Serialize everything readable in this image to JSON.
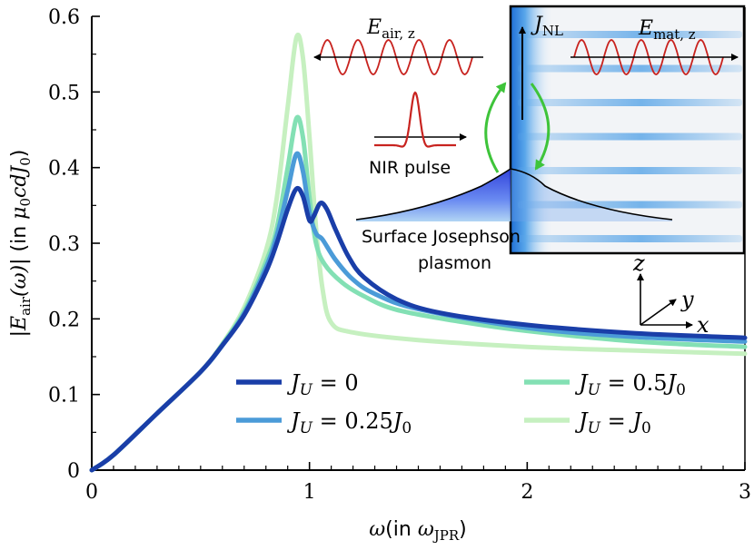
{
  "chart_data": {
    "type": "line",
    "title": "",
    "xlabel": {
      "symbol": "ω",
      "prefix": "(in ",
      "unit_main": "ω",
      "unit_sub": "JPR",
      "suffix": ")"
    },
    "ylabel": {
      "pre": "|",
      "main": "E",
      "sub": "air",
      "arg": "(ω)",
      "post": "|",
      "paren_open": " (in ",
      "unit": "μ",
      "unit_sub": "0",
      "unit_rest": "cdJ",
      "unit_sub2": "0",
      "paren_close": ")"
    },
    "xlim": [
      0,
      3
    ],
    "ylim": [
      0,
      0.6
    ],
    "x_ticks": [
      0,
      1,
      2,
      3
    ],
    "x_tick_labels": [
      "0",
      "1",
      "2",
      "3"
    ],
    "y_ticks": [
      0,
      0.1,
      0.2,
      0.3,
      0.4,
      0.5,
      0.6
    ],
    "y_tick_labels": [
      "0",
      "0.1",
      "0.2",
      "0.3",
      "0.4",
      "0.5",
      "0.6"
    ],
    "legend_position": "bottom-center",
    "series": [
      {
        "name": "J_U = 0",
        "label_main": "J",
        "label_sub": "U",
        "label_rest": " = 0",
        "color": "#1a3ea8",
        "points": [
          [
            0,
            0
          ],
          [
            0.1,
            0.02
          ],
          [
            0.3,
            0.075
          ],
          [
            0.5,
            0.13
          ],
          [
            0.6,
            0.165
          ],
          [
            0.7,
            0.205
          ],
          [
            0.8,
            0.262
          ],
          [
            0.85,
            0.3
          ],
          [
            0.9,
            0.345
          ],
          [
            0.94,
            0.372
          ],
          [
            0.97,
            0.362
          ],
          [
            1.0,
            0.33
          ],
          [
            1.02,
            0.336
          ],
          [
            1.05,
            0.353
          ],
          [
            1.08,
            0.345
          ],
          [
            1.12,
            0.318
          ],
          [
            1.18,
            0.282
          ],
          [
            1.25,
            0.255
          ],
          [
            1.4,
            0.226
          ],
          [
            1.6,
            0.208
          ],
          [
            2.0,
            0.192
          ],
          [
            2.5,
            0.181
          ],
          [
            3.0,
            0.175
          ]
        ]
      },
      {
        "name": "J_U = 0.25J_0",
        "label_main": "J",
        "label_sub": "U",
        "label_rest": " = 0.25",
        "label_tail": "J",
        "label_tail_sub": "0",
        "color": "#4b9bd8",
        "points": [
          [
            0,
            0
          ],
          [
            0.1,
            0.02
          ],
          [
            0.3,
            0.075
          ],
          [
            0.5,
            0.13
          ],
          [
            0.6,
            0.165
          ],
          [
            0.7,
            0.207
          ],
          [
            0.8,
            0.268
          ],
          [
            0.85,
            0.31
          ],
          [
            0.9,
            0.37
          ],
          [
            0.94,
            0.418
          ],
          [
            0.97,
            0.395
          ],
          [
            1.0,
            0.34
          ],
          [
            1.03,
            0.313
          ],
          [
            1.06,
            0.305
          ],
          [
            1.12,
            0.278
          ],
          [
            1.2,
            0.252
          ],
          [
            1.3,
            0.233
          ],
          [
            1.5,
            0.213
          ],
          [
            2.0,
            0.188
          ],
          [
            2.5,
            0.176
          ],
          [
            3.0,
            0.17
          ]
        ]
      },
      {
        "name": "J_U = 0.5J_0",
        "label_main": "J",
        "label_sub": "U",
        "label_rest": " = 0.5",
        "label_tail": "J",
        "label_tail_sub": "0",
        "color": "#83e0b4",
        "points": [
          [
            0,
            0
          ],
          [
            0.1,
            0.02
          ],
          [
            0.3,
            0.075
          ],
          [
            0.5,
            0.13
          ],
          [
            0.6,
            0.166
          ],
          [
            0.7,
            0.21
          ],
          [
            0.8,
            0.275
          ],
          [
            0.85,
            0.32
          ],
          [
            0.9,
            0.4
          ],
          [
            0.94,
            0.465
          ],
          [
            0.97,
            0.44
          ],
          [
            1.0,
            0.36
          ],
          [
            1.03,
            0.3
          ],
          [
            1.07,
            0.272
          ],
          [
            1.15,
            0.248
          ],
          [
            1.25,
            0.23
          ],
          [
            1.4,
            0.212
          ],
          [
            1.7,
            0.196
          ],
          [
            2.0,
            0.184
          ],
          [
            2.5,
            0.17
          ],
          [
            3.0,
            0.163
          ]
        ]
      },
      {
        "name": "J_U = J_0",
        "label_main": "J",
        "label_sub": "U",
        "label_rest": " = ",
        "label_tail": "J",
        "label_tail_sub": "0",
        "color": "#c6f0c0",
        "points": [
          [
            0,
            0
          ],
          [
            0.1,
            0.02
          ],
          [
            0.3,
            0.075
          ],
          [
            0.5,
            0.13
          ],
          [
            0.6,
            0.167
          ],
          [
            0.7,
            0.215
          ],
          [
            0.8,
            0.29
          ],
          [
            0.85,
            0.36
          ],
          [
            0.9,
            0.48
          ],
          [
            0.94,
            0.572
          ],
          [
            0.97,
            0.545
          ],
          [
            1.0,
            0.44
          ],
          [
            1.03,
            0.32
          ],
          [
            1.06,
            0.24
          ],
          [
            1.1,
            0.195
          ],
          [
            1.2,
            0.182
          ],
          [
            1.5,
            0.172
          ],
          [
            2.0,
            0.163
          ],
          [
            2.5,
            0.158
          ],
          [
            3.0,
            0.154
          ]
        ]
      }
    ],
    "inset": {
      "e_air_main": "E",
      "e_air_sub": "air, z",
      "e_mat_main": "E",
      "e_mat_sub": "mat, z",
      "j_nl_main": "J",
      "j_nl_sub": "NL",
      "nir_label": "NIR pulse",
      "plasmon_line1": "Surface Josephson",
      "plasmon_line2": "plasmon",
      "axis_z": "z",
      "axis_y": "y",
      "axis_x": "x",
      "wave_color": "#c8231f",
      "arrow_color": "#3ec43a",
      "layer_color": "#8ab0e6"
    }
  }
}
